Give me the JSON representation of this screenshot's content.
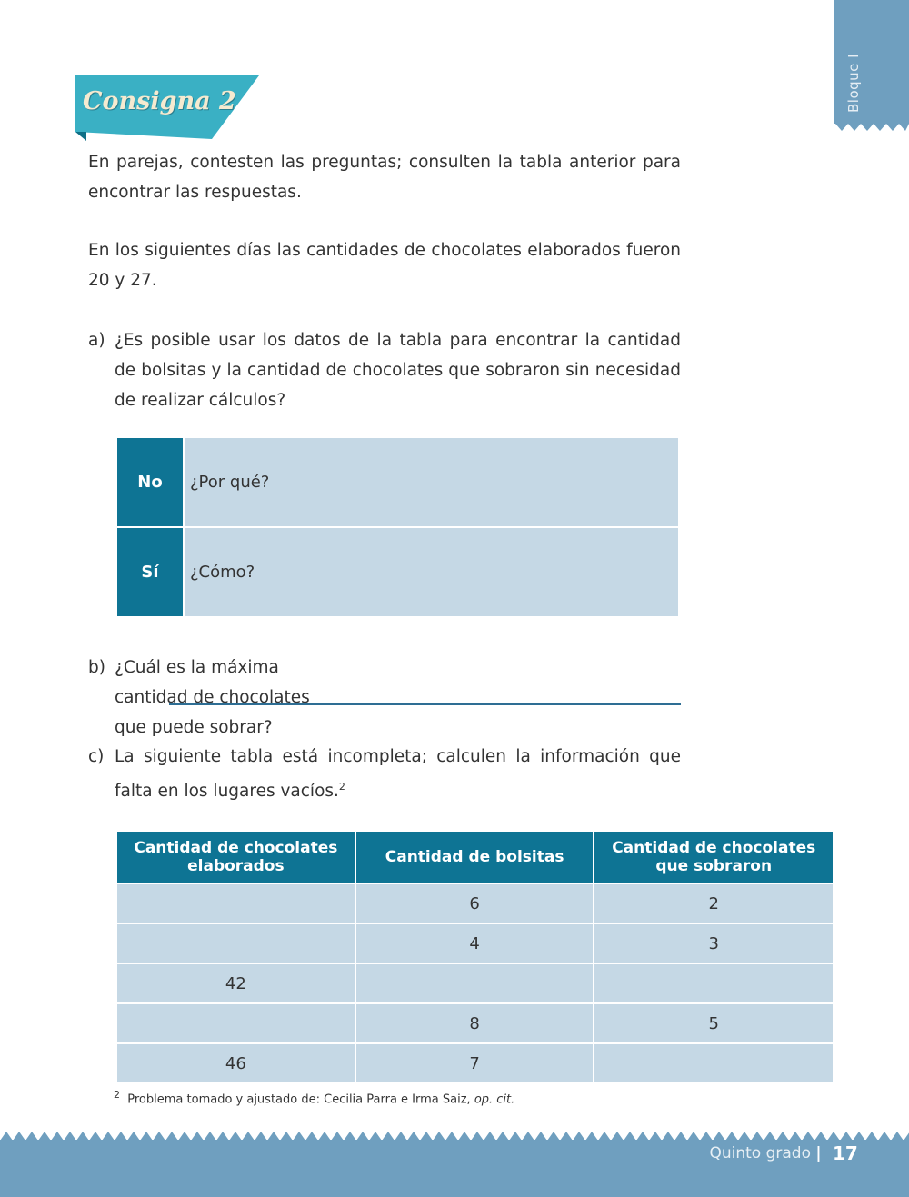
{
  "side_tab": {
    "label": "Bloque I"
  },
  "section": {
    "title": "Consigna 2"
  },
  "intro": [
    "En parejas, contesten las preguntas; consulten la tabla anterior para encontrar las respuestas.",
    "En los siguientes días las cantidades de chocolates elaborados fueron 20 y 27."
  ],
  "question_a": {
    "label": "a)",
    "text": "¿Es posible usar los datos de la tabla para encontrar la cantidad de bolsitas y la cantidad de chocolates que sobraron sin necesidad de realizar cálculos?",
    "rows": [
      {
        "option": "No",
        "prompt": "¿Por qué?"
      },
      {
        "option": "Sí",
        "prompt": "¿Cómo?"
      }
    ]
  },
  "question_b": {
    "label": "b)",
    "text": "¿Cuál es la máxima cantidad de chocolates que puede sobrar?"
  },
  "question_c": {
    "label": "c)",
    "text": "La siguiente tabla está incompleta; calculen la información que falta en los lugares vacíos.",
    "footnote_ref": "2"
  },
  "table": {
    "headers": [
      "Cantidad de chocolates elaborados",
      "Cantidad de bolsitas",
      "Cantidad de chocolates que sobraron"
    ],
    "rows": [
      [
        "",
        "6",
        "2"
      ],
      [
        "",
        "4",
        "3"
      ],
      [
        "42",
        "",
        ""
      ],
      [
        "",
        "8",
        "5"
      ],
      [
        "46",
        "7",
        ""
      ]
    ]
  },
  "footnote": {
    "mark": "2",
    "text": "Problema tomado y ajustado de: Cecilia Parra e Irma Saiz, ",
    "cite": "op. cit."
  },
  "footer": {
    "grade": "Quinto grado",
    "page": "17"
  },
  "colors": {
    "band": "#6f9fbf",
    "banner": "#3ab0c4",
    "table_header": "#0e7494",
    "table_cell": "#c5d8e5"
  }
}
